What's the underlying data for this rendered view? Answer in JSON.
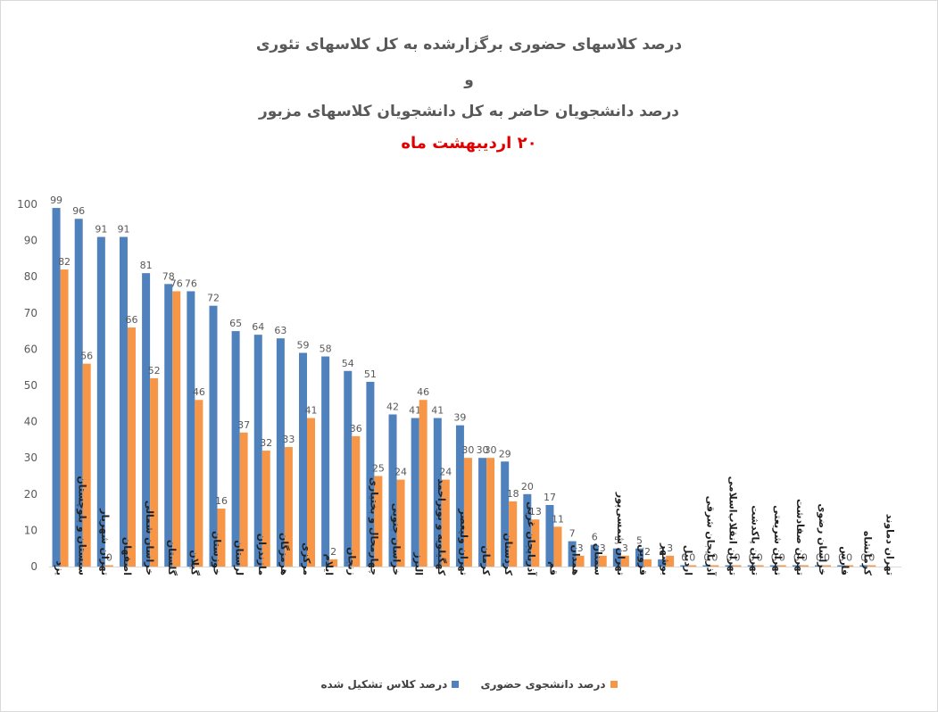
{
  "titles": {
    "line1": "درصد کلاسهای حضوری برگزارشده به کل کلاسهای تئوری",
    "line2": "و",
    "line3": "درصد دانشجویان حاضر به کل دانشجویان کلاسهای مزبور",
    "line4": "۲۰ اردیبهشت ماه"
  },
  "chart_data": {
    "type": "bar",
    "ylim": [
      0,
      100
    ],
    "yticks": [
      0,
      10,
      20,
      30,
      40,
      50,
      60,
      70,
      80,
      90,
      100
    ],
    "grid": false,
    "legend_position": "bottom",
    "categories": [
      "یزد",
      "سیستان و بلوچستان",
      "تهران شهریار",
      "اصفهان",
      "خراسان شمالی",
      "گلستان",
      "گیلان",
      "خوزستان",
      "لرستان",
      "مازندران",
      "هرمزگان",
      "مرکزی",
      "ایلام",
      "زنجان",
      "چهارمحال و بختیاری",
      "خراسان جنوبی",
      "البرز",
      "کهگیلویه و بویراحمد",
      "تهران ولیعصر",
      "کرمان",
      "کردستان",
      "آذربایجان غربی",
      "قم",
      "همدان",
      "سمنان",
      "تهران شمسی‌پور",
      "قزوین",
      "بوشهر",
      "اردبیل",
      "آذربایجان شرقی",
      "تهران انقلاب‌اسلامی",
      "تهران پاکدشت",
      "تهران شریعتی",
      "تهران صفادشت",
      "خراسان رضوی",
      "فارس",
      "کرمانشاه",
      "تهران دماوند"
    ],
    "series": [
      {
        "name": "درصد کلاس تشکیل شده",
        "color": "#4f81bd",
        "values": [
          99,
          96,
          91,
          91,
          81,
          78,
          76,
          72,
          65,
          64,
          63,
          59,
          58,
          54,
          51,
          42,
          41,
          41,
          39,
          30,
          29,
          20,
          17,
          7,
          6,
          5,
          5,
          2,
          0,
          0,
          0,
          0,
          0,
          0,
          0,
          0,
          0,
          null
        ]
      },
      {
        "name": "درصد دانشجوی حضوری",
        "color": "#f79646",
        "values": [
          82,
          56,
          0,
          66,
          52,
          76,
          46,
          16,
          37,
          32,
          33,
          41,
          2,
          36,
          25,
          24,
          46,
          24,
          30,
          30,
          18,
          13,
          11,
          3,
          3,
          3,
          2,
          3,
          0,
          0,
          0,
          0,
          0,
          0,
          0,
          0,
          0,
          null
        ]
      }
    ]
  },
  "colors": {
    "axis_text": "#595959",
    "title_red": "#e00000"
  }
}
